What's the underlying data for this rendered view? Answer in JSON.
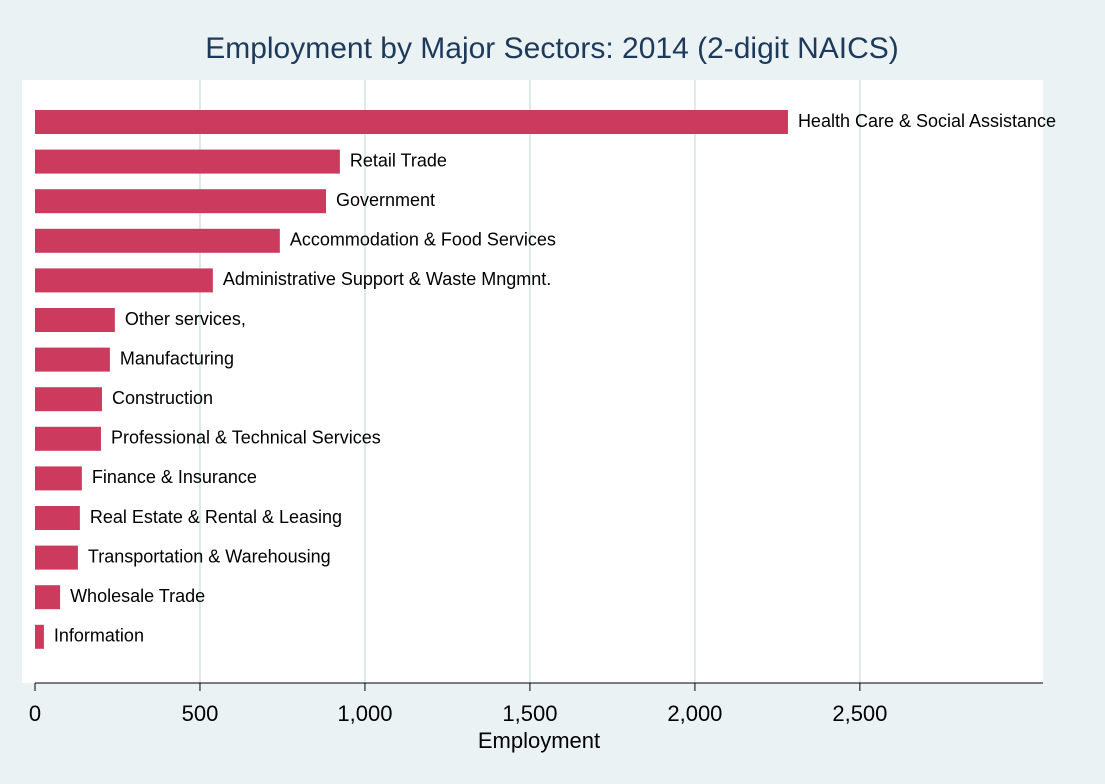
{
  "chart_data": {
    "type": "barh",
    "title": "Employment by Major Sectors: 2014 (2-digit NAICS)",
    "x_label": "Employment",
    "categories": [
      "Health Care & Social Assistance",
      "Retail Trade",
      "Government",
      "Accommodation & Food Services",
      "Administrative Support & Waste Mngmnt.",
      "Other services,",
      "Manufacturing",
      "Construction",
      "Professional & Technical Services",
      "Finance & Insurance",
      "Real Estate & Rental & Leasing",
      "Transportation & Warehousing",
      "Wholesale Trade",
      "Information"
    ],
    "values": [
      2282,
      924,
      882,
      742,
      539,
      242,
      227,
      203,
      200,
      142,
      136,
      130,
      76,
      27
    ],
    "color": "#cc3a5e",
    "xlim": [
      0,
      3055
    ],
    "xticks": [
      0,
      500,
      {
        "value": 1000,
        "label": "1,000"
      },
      {
        "value": 1500,
        "label": "1,500"
      },
      {
        "value": 2000,
        "label": "2,000"
      },
      {
        "value": 2500,
        "label": "2,500"
      }
    ],
    "grid": true
  }
}
